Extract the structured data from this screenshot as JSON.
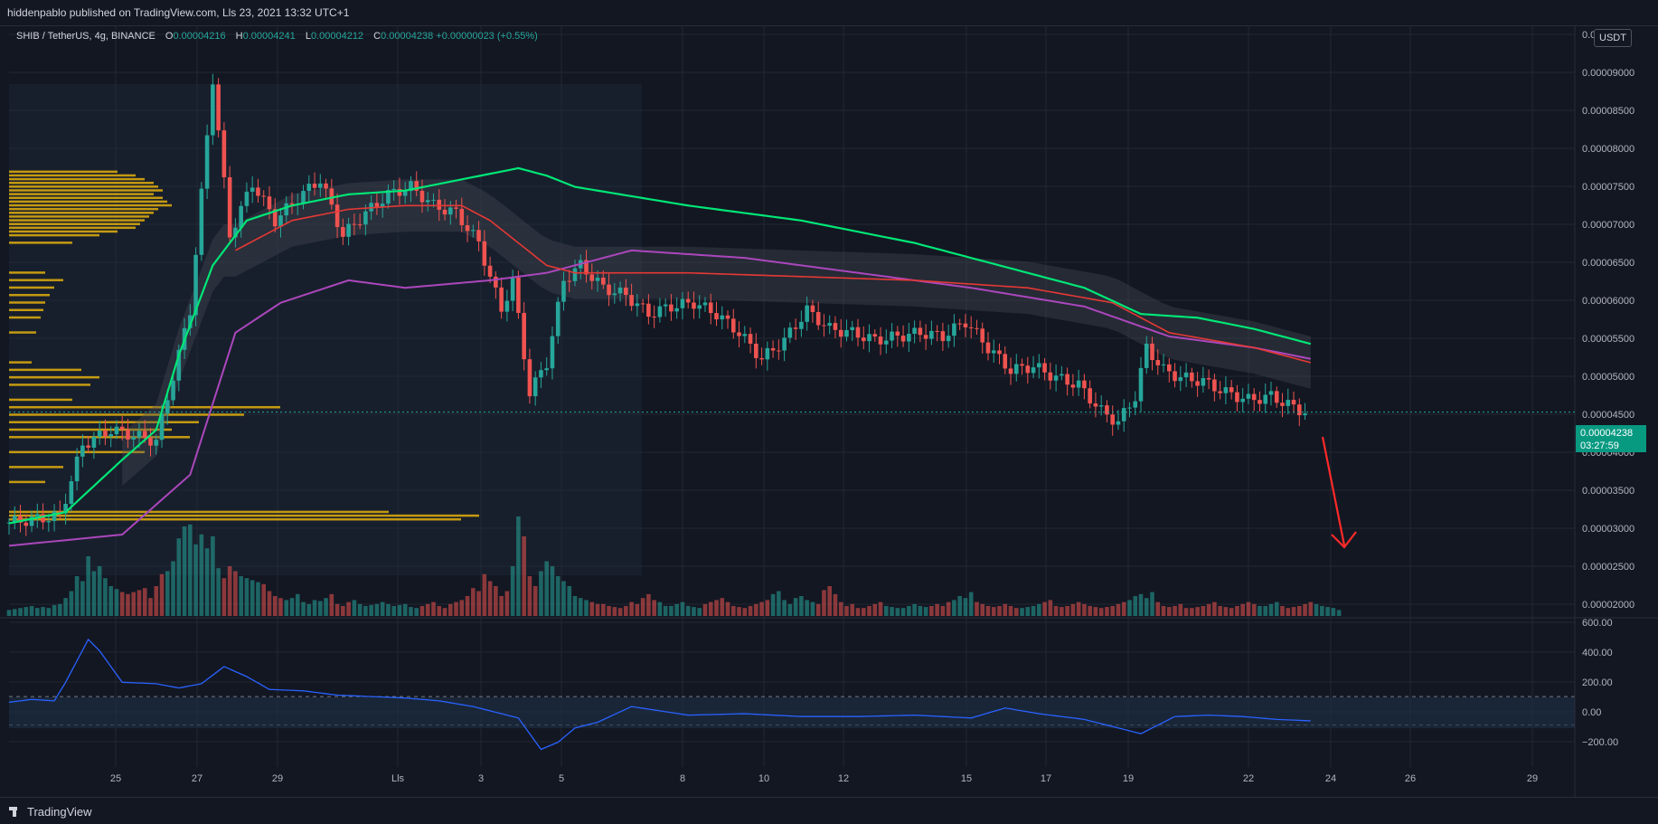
{
  "header": {
    "publish_line": "hiddenpablo published on TradingView.com, Lls 23, 2021 13:32 UTC+1"
  },
  "legend": {
    "symbol": "SHIB / TetherUS, 4g, BINANCE",
    "o_label": "O",
    "o_value": "0.00004216",
    "h_label": "H",
    "h_value": "0.00004241",
    "l_label": "L",
    "l_value": "0.00004212",
    "c_label": "C",
    "c_value": "0.00004238",
    "change": "+0.00000023 (+0.55%)"
  },
  "price_axis": {
    "currency_button": "USDT",
    "last_price": "0.00004238",
    "countdown": "03:27:59"
  },
  "footer": {
    "brand": "TradingView"
  },
  "colors": {
    "background": "#131722",
    "grid": "#232733",
    "up": "#26a69a",
    "down": "#ef5350",
    "ema_fast": "#00e676",
    "ema_mid": "#e53935",
    "ema_slow": "#ab47bc",
    "volume_profile": "#f0b90b",
    "oscillator": "#2962ff",
    "arrow": "#ff2a2a"
  },
  "chart_data": {
    "type": "candlestick",
    "x_ticks": [
      "25",
      "27",
      "29",
      "Lls",
      "3",
      "5",
      "8",
      "10",
      "12",
      "15",
      "17",
      "19",
      "22",
      "24",
      "26",
      "29"
    ],
    "price_ticks": [
      "0.0000",
      "0.00009000",
      "0.00008500",
      "0.00008000",
      "0.00007500",
      "0.00007000",
      "0.00006500",
      "0.00006000",
      "0.00005500",
      "0.00005000",
      "0.00004500",
      "0.00004000",
      "0.00003500",
      "0.00003000",
      "0.00002500",
      "0.00002000"
    ],
    "price_range": [
      1.85e-05,
      9.35e-05
    ],
    "oscillator_ticks": [
      "600.00",
      "400.00",
      "200.00",
      "0.00",
      "−200.00"
    ],
    "oscillator_range": [
      -330,
      620
    ],
    "oscillator_bands": [
      100,
      -100
    ],
    "last_price": 4.238e-05,
    "price_path": [
      [
        0,
        2.75e-05
      ],
      [
        10,
        2.85e-05
      ],
      [
        14,
        3.8e-05
      ],
      [
        19,
        4e-05
      ],
      [
        27,
        3.85e-05
      ],
      [
        33,
        5.6e-05
      ],
      [
        37,
        8.7e-05
      ],
      [
        40,
        6.6e-05
      ],
      [
        44,
        7.3e-05
      ],
      [
        48,
        6.8e-05
      ],
      [
        52,
        7.1e-05
      ],
      [
        56,
        7.35e-05
      ],
      [
        60,
        6.6e-05
      ],
      [
        64,
        6.9e-05
      ],
      [
        68,
        7.15e-05
      ],
      [
        72,
        7.25e-05
      ],
      [
        76,
        7e-05
      ],
      [
        80,
        6.9e-05
      ],
      [
        84,
        6.5e-05
      ],
      [
        88,
        5.6e-05
      ],
      [
        90,
        6e-05
      ],
      [
        93,
        4.5e-05
      ],
      [
        96,
        4.9e-05
      ],
      [
        99,
        6e-05
      ],
      [
        102,
        6.2e-05
      ],
      [
        106,
        5.9e-05
      ],
      [
        110,
        5.8e-05
      ],
      [
        114,
        5.55e-05
      ],
      [
        118,
        5.65e-05
      ],
      [
        122,
        5.7e-05
      ],
      [
        126,
        5.55e-05
      ],
      [
        130,
        5.3e-05
      ],
      [
        134,
        4.95e-05
      ],
      [
        138,
        5.2e-05
      ],
      [
        142,
        5.6e-05
      ],
      [
        146,
        5.35e-05
      ],
      [
        150,
        5.3e-05
      ],
      [
        154,
        5.2e-05
      ],
      [
        158,
        5.25e-05
      ],
      [
        162,
        5.3e-05
      ],
      [
        166,
        5.25e-05
      ],
      [
        170,
        5.45e-05
      ],
      [
        174,
        5.1e-05
      ],
      [
        178,
        4.8e-05
      ],
      [
        182,
        4.85e-05
      ],
      [
        186,
        4.7e-05
      ],
      [
        190,
        4.6e-05
      ],
      [
        194,
        4.25e-05
      ],
      [
        197,
        4.1e-05
      ],
      [
        200,
        4.45e-05
      ],
      [
        202,
        5.1e-05
      ],
      [
        205,
        4.8e-05
      ],
      [
        208,
        4.7e-05
      ],
      [
        212,
        4.65e-05
      ],
      [
        216,
        4.5e-05
      ],
      [
        220,
        4.4e-05
      ],
      [
        224,
        4.45e-05
      ],
      [
        228,
        4.3e-05
      ],
      [
        230,
        4.24e-05
      ]
    ],
    "ema_fast_path": [
      [
        0,
        2.75e-05
      ],
      [
        10,
        2.9e-05
      ],
      [
        20,
        3.6e-05
      ],
      [
        26,
        4e-05
      ],
      [
        30,
        5e-05
      ],
      [
        36,
        6.2e-05
      ],
      [
        42,
        6.8e-05
      ],
      [
        50,
        7e-05
      ],
      [
        60,
        7.15e-05
      ],
      [
        70,
        7.2e-05
      ],
      [
        80,
        7.35e-05
      ],
      [
        90,
        7.5e-05
      ],
      [
        95,
        7.4e-05
      ],
      [
        100,
        7.25e-05
      ],
      [
        120,
        7e-05
      ],
      [
        140,
        6.8e-05
      ],
      [
        150,
        6.65e-05
      ],
      [
        160,
        6.5e-05
      ],
      [
        170,
        6.3e-05
      ],
      [
        180,
        6.1e-05
      ],
      [
        190,
        5.9e-05
      ],
      [
        200,
        5.55e-05
      ],
      [
        210,
        5.5e-05
      ],
      [
        220,
        5.35e-05
      ],
      [
        230,
        5.15e-05
      ]
    ],
    "ema_mid_path": [
      [
        40,
        6.4e-05
      ],
      [
        50,
        6.8e-05
      ],
      [
        60,
        6.95e-05
      ],
      [
        70,
        7e-05
      ],
      [
        80,
        7e-05
      ],
      [
        85,
        6.8e-05
      ],
      [
        90,
        6.5e-05
      ],
      [
        95,
        6.2e-05
      ],
      [
        100,
        6.1e-05
      ],
      [
        120,
        6.1e-05
      ],
      [
        140,
        6.05e-05
      ],
      [
        160,
        6e-05
      ],
      [
        180,
        5.9e-05
      ],
      [
        195,
        5.7e-05
      ],
      [
        205,
        5.3e-05
      ],
      [
        220,
        5.1e-05
      ],
      [
        230,
        4.9e-05
      ]
    ],
    "ema_slow_path": [
      [
        0,
        2.45e-05
      ],
      [
        20,
        2.6e-05
      ],
      [
        32,
        3.4e-05
      ],
      [
        40,
        5.3e-05
      ],
      [
        48,
        5.7e-05
      ],
      [
        60,
        6e-05
      ],
      [
        70,
        5.9e-05
      ],
      [
        85,
        6e-05
      ],
      [
        95,
        6.1e-05
      ],
      [
        100,
        6.2e-05
      ],
      [
        110,
        6.4e-05
      ],
      [
        130,
        6.3e-05
      ],
      [
        150,
        6.1e-05
      ],
      [
        170,
        5.9e-05
      ],
      [
        190,
        5.65e-05
      ],
      [
        205,
        5.25e-05
      ],
      [
        220,
        5.1e-05
      ],
      [
        230,
        4.95e-05
      ]
    ],
    "volume": [
      6,
      7,
      8,
      9,
      10,
      8,
      9,
      8,
      11,
      12,
      18,
      25,
      40,
      35,
      60,
      45,
      50,
      38,
      30,
      27,
      24,
      22,
      24,
      26,
      28,
      18,
      30,
      42,
      45,
      55,
      78,
      90,
      92,
      72,
      82,
      68,
      80,
      48,
      38,
      50,
      45,
      40,
      38,
      36,
      34,
      32,
      25,
      20,
      18,
      16,
      18,
      22,
      14,
      12,
      16,
      15,
      18,
      22,
      12,
      10,
      14,
      16,
      12,
      10,
      11,
      12,
      14,
      12,
      10,
      11,
      12,
      9,
      8,
      10,
      12,
      14,
      10,
      8,
      12,
      14,
      16,
      20,
      28,
      25,
      42,
      35,
      30,
      20,
      25,
      50,
      100,
      80,
      40,
      30,
      45,
      55,
      50,
      40,
      35,
      30,
      20,
      18,
      16,
      14,
      12,
      12,
      10,
      9,
      8,
      10,
      14,
      12,
      18,
      22,
      16,
      14,
      10,
      10,
      12,
      14,
      10,
      9,
      8,
      12,
      14,
      16,
      18,
      14,
      10,
      9,
      8,
      10,
      12,
      14,
      16,
      22,
      25,
      16,
      12,
      18,
      20,
      16,
      14,
      12,
      26,
      30,
      22,
      14,
      10,
      12,
      8,
      8,
      10,
      12,
      14,
      10,
      9,
      8,
      8,
      10,
      12,
      10,
      9,
      10,
      12,
      10,
      14,
      16,
      20,
      18,
      24,
      14,
      12,
      10,
      9,
      10,
      12,
      10,
      8,
      8,
      9,
      10,
      12,
      14,
      16,
      10,
      9,
      10,
      12,
      14,
      12,
      10,
      9,
      8,
      9,
      10,
      12,
      14,
      16,
      20,
      22,
      18,
      24,
      14,
      10,
      9,
      10,
      12,
      8,
      8,
      9,
      10,
      12,
      14,
      10,
      9,
      8,
      10,
      12,
      14,
      12,
      10,
      10,
      12,
      14,
      10,
      8,
      9,
      10,
      12,
      14,
      12,
      10,
      9,
      8,
      6
    ],
    "oscillator_path": [
      [
        0,
        60
      ],
      [
        4,
        80
      ],
      [
        8,
        70
      ],
      [
        10,
        200
      ],
      [
        14,
        500
      ],
      [
        16,
        420
      ],
      [
        20,
        200
      ],
      [
        26,
        190
      ],
      [
        30,
        160
      ],
      [
        34,
        190
      ],
      [
        38,
        310
      ],
      [
        42,
        240
      ],
      [
        46,
        150
      ],
      [
        52,
        140
      ],
      [
        58,
        110
      ],
      [
        64,
        100
      ],
      [
        70,
        90
      ],
      [
        76,
        70
      ],
      [
        82,
        30
      ],
      [
        86,
        -10
      ],
      [
        90,
        -50
      ],
      [
        94,
        -270
      ],
      [
        97,
        -220
      ],
      [
        100,
        -120
      ],
      [
        104,
        -80
      ],
      [
        110,
        30
      ],
      [
        120,
        -30
      ],
      [
        130,
        -20
      ],
      [
        140,
        -40
      ],
      [
        150,
        -40
      ],
      [
        160,
        -30
      ],
      [
        170,
        -50
      ],
      [
        176,
        20
      ],
      [
        182,
        -20
      ],
      [
        190,
        -60
      ],
      [
        196,
        -120
      ],
      [
        200,
        -160
      ],
      [
        206,
        -40
      ],
      [
        212,
        -30
      ],
      [
        218,
        -40
      ],
      [
        224,
        -60
      ],
      [
        230,
        -70
      ]
    ],
    "volume_profile": [
      7.45e-05,
      7.4e-05,
      7.35e-05,
      7.3e-05,
      7.25e-05,
      7.2e-05,
      7.15e-05,
      7.1e-05,
      7.05e-05,
      7e-05,
      6.95e-05,
      6.9e-05,
      6.85e-05,
      6.8e-05,
      6.75e-05,
      6.7e-05,
      6.65e-05,
      6.6e-05,
      6.5e-05,
      6.1e-05,
      6e-05,
      5.9e-05,
      5.8e-05,
      5.7e-05,
      5.6e-05,
      5.5e-05,
      5.3e-05,
      4.9e-05,
      4.8e-05,
      4.7e-05,
      4.6e-05,
      4.4e-05,
      4.3e-05,
      4.2e-05,
      4.1e-05,
      4e-05,
      3.9e-05,
      3.7e-05,
      3.5e-05,
      3.3e-05,
      2.9e-05,
      2.85e-05,
      2.8e-05
    ],
    "volume_profile_sizes": [
      120,
      140,
      150,
      160,
      165,
      170,
      160,
      170,
      175,
      180,
      165,
      160,
      155,
      150,
      145,
      140,
      120,
      100,
      70,
      40,
      60,
      50,
      45,
      40,
      38,
      35,
      30,
      25,
      80,
      100,
      90,
      70,
      300,
      260,
      210,
      180,
      200,
      150,
      60,
      40,
      420,
      520,
      500
    ]
  }
}
